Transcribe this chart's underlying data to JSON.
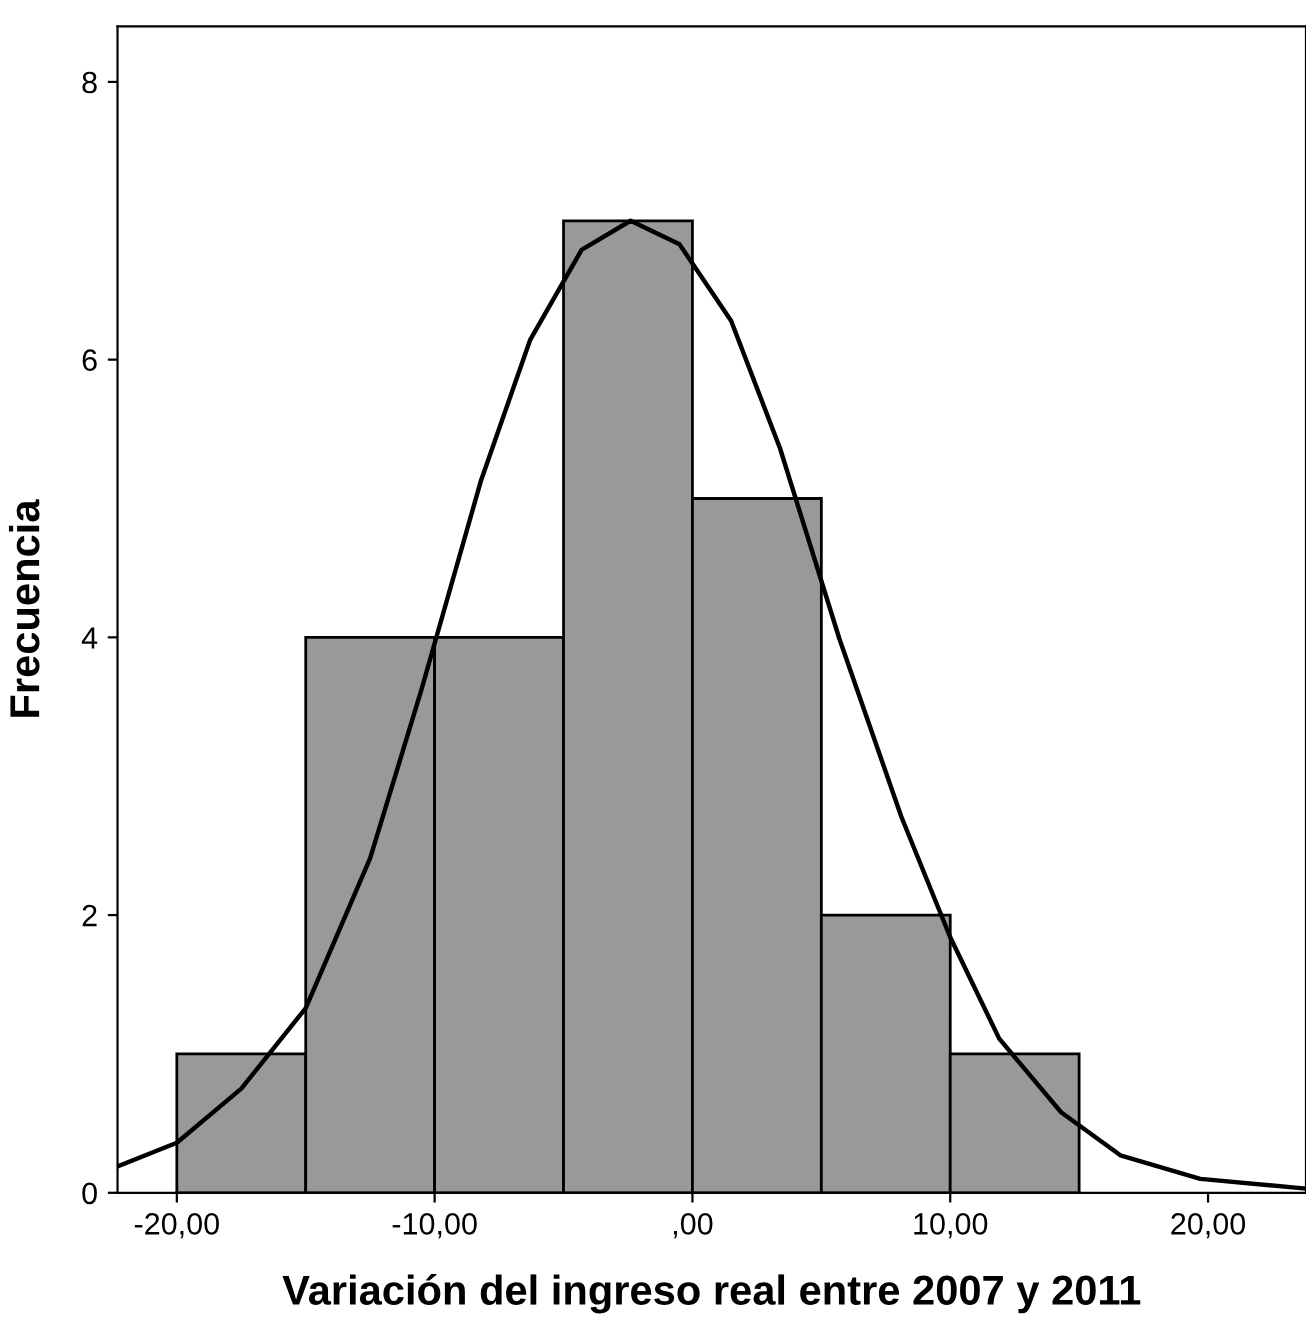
{
  "chart_data": {
    "type": "histogram",
    "xlabel": "Variación del ingreso real entre 2007 y 2011",
    "ylabel": "Frecuencia",
    "bins": [
      -20,
      -15,
      -10,
      -5,
      0,
      5,
      10,
      15
    ],
    "values": [
      1,
      4,
      4,
      7,
      5,
      2,
      1
    ],
    "color": "#999999",
    "xlim": [
      -22.3,
      23.8
    ],
    "ylim": [
      0,
      8.4
    ],
    "xticks": [
      {
        "value": -20,
        "label": "-20,00"
      },
      {
        "value": -10,
        "label": "-10,00"
      },
      {
        "value": 0,
        "label": ",00"
      },
      {
        "value": 10,
        "label": "10,00"
      },
      {
        "value": 20,
        "label": "20,00"
      }
    ],
    "yticks": [
      0,
      2,
      4,
      6,
      8
    ],
    "grid": false,
    "series": [
      {
        "type": "line",
        "color": "#000000",
        "x": [
          -22.3,
          -20,
          -17.5,
          -15,
          -12.5,
          -10.5,
          -8.2,
          -6.3,
          -4.3,
          -2.4,
          -0.5,
          1.5,
          3.4,
          5.7,
          8.1,
          10,
          11.9,
          14.3,
          16.6,
          19.7,
          23.8
        ],
        "values": [
          0.19,
          0.36,
          0.75,
          1.33,
          2.41,
          3.63,
          5.13,
          6.14,
          6.79,
          7.0,
          6.83,
          6.28,
          5.36,
          3.99,
          2.71,
          1.84,
          1.11,
          0.58,
          0.27,
          0.1,
          0.03
        ]
      }
    ]
  }
}
